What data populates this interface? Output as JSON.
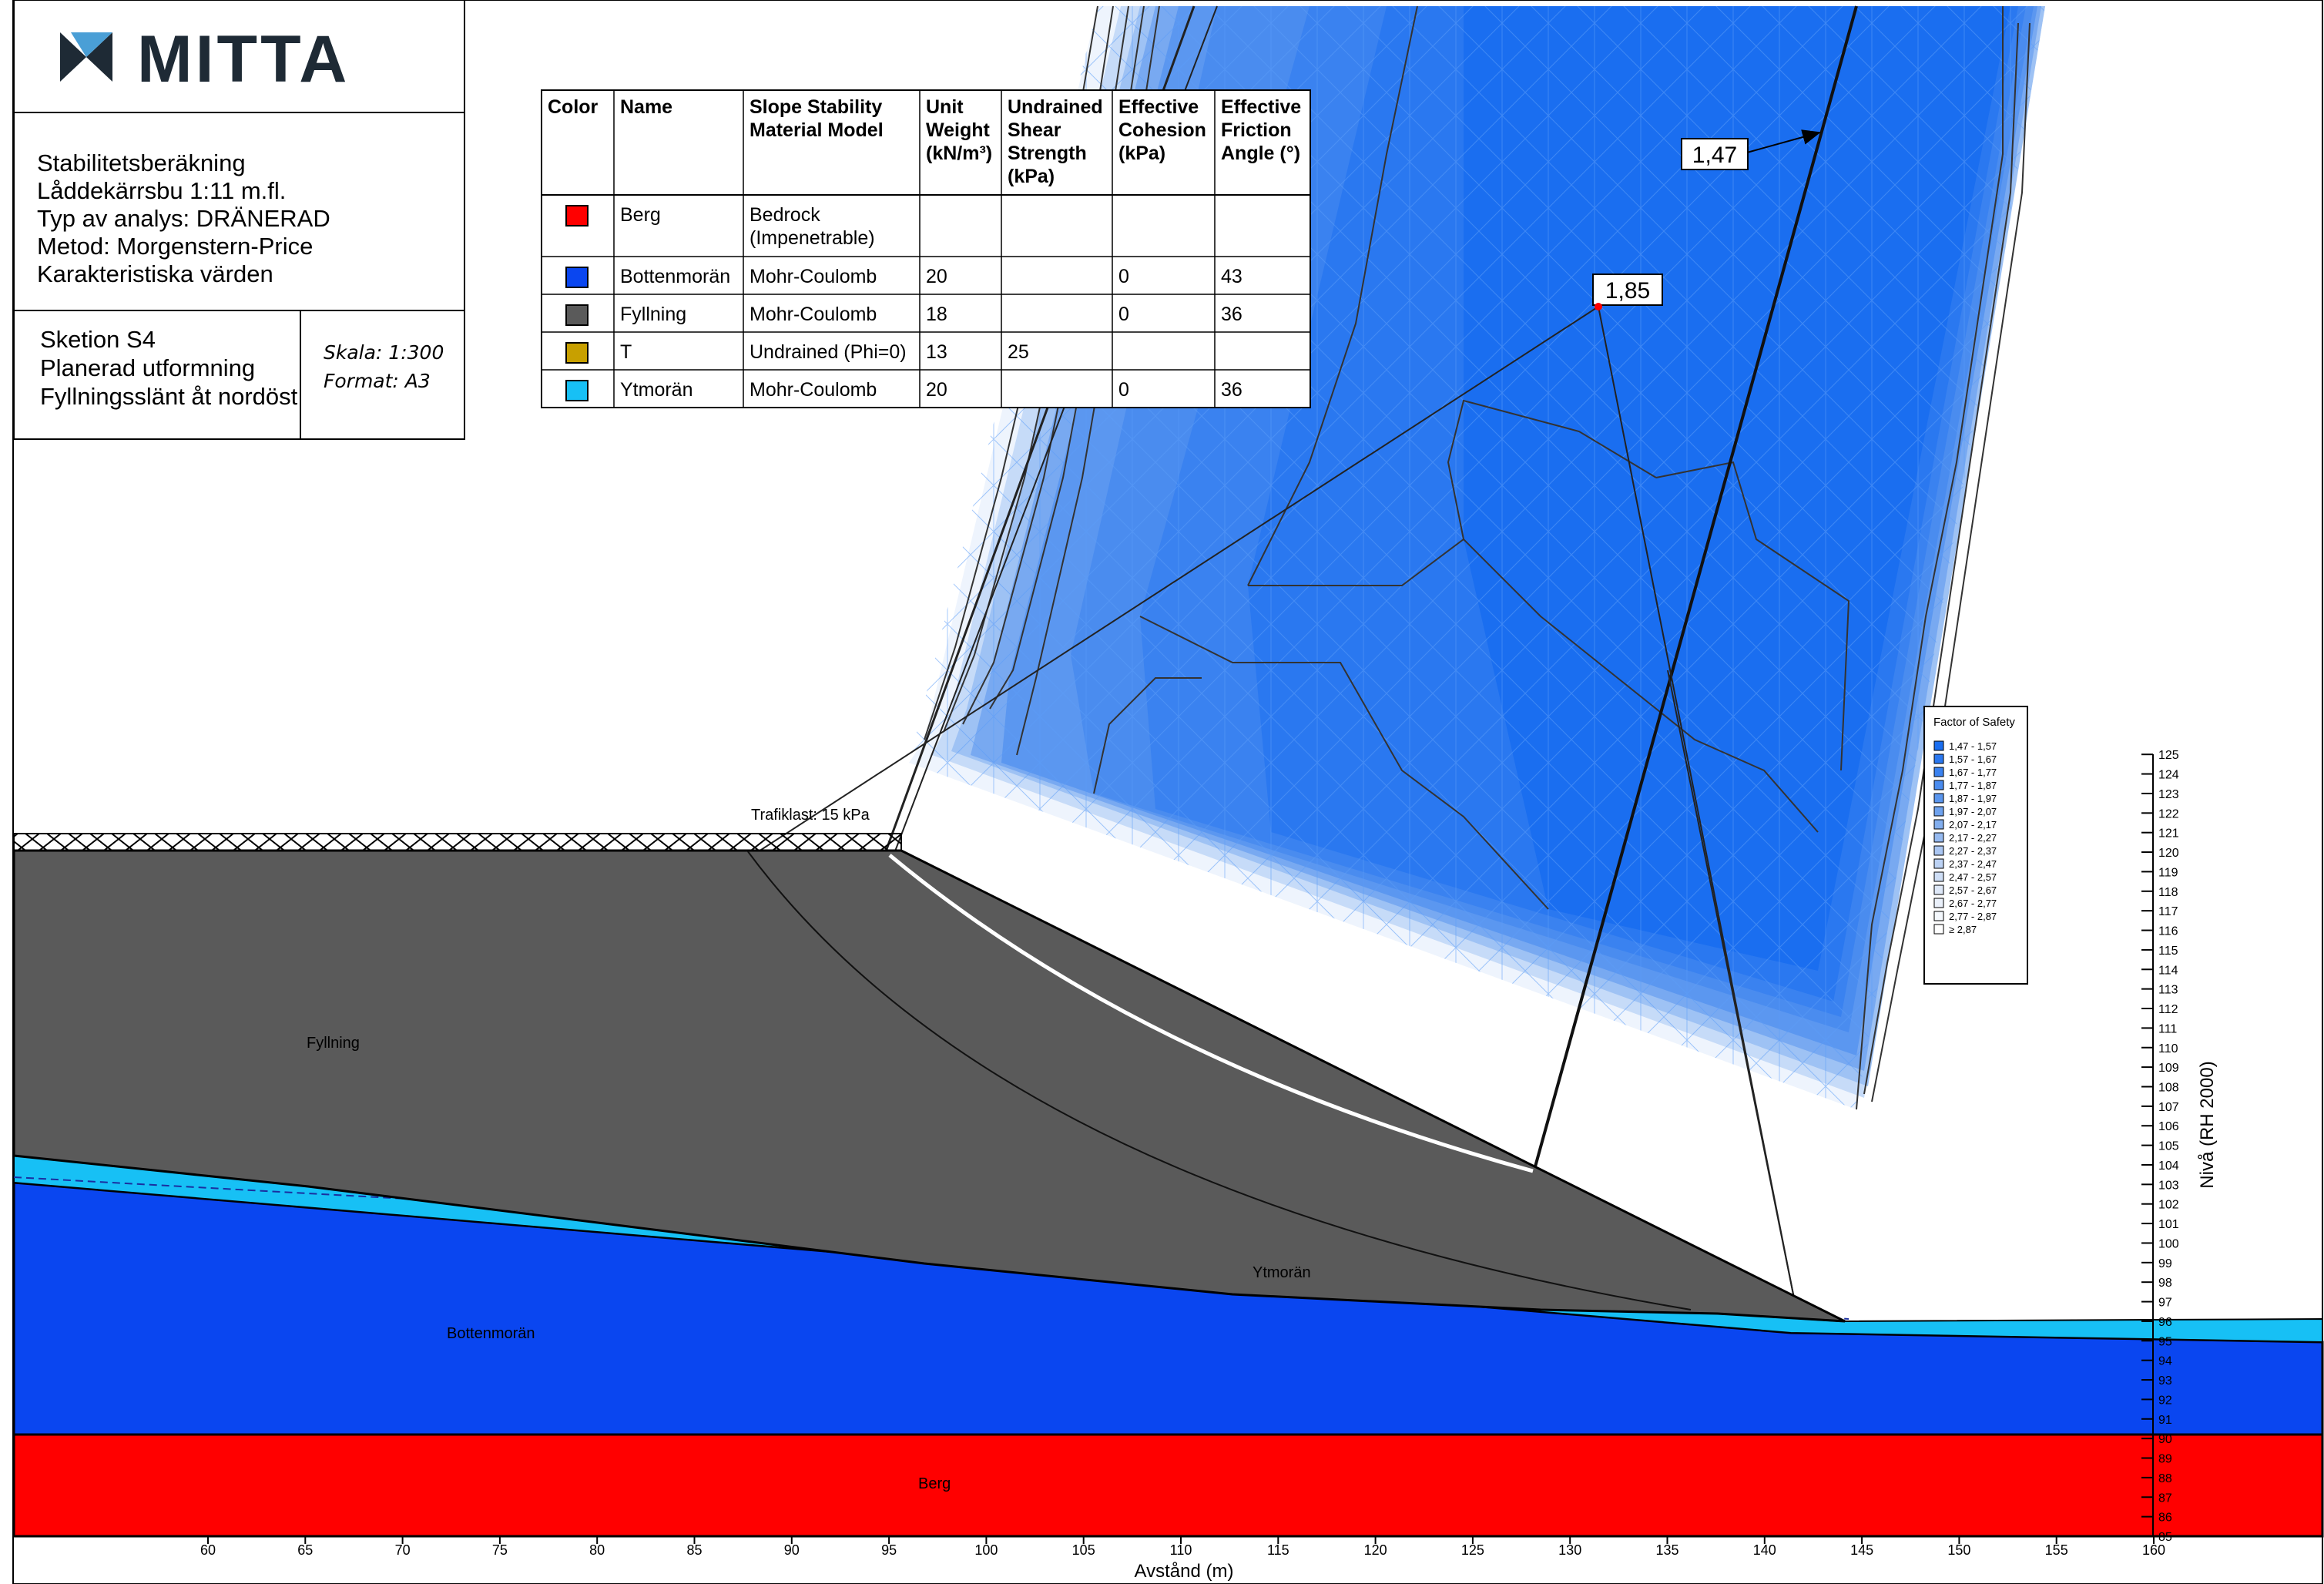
{
  "title_block": {
    "logo_text": "MITTA",
    "lines": [
      "Stabilitetsberäkning",
      "Låddekärrsbu 1:11 m.fl.",
      "Typ av analys: DRÄNERAD",
      "Metod: Morgenstern-Price",
      "Karakteristiska värden"
    ],
    "section_lines": [
      "Sketion S4",
      "Planerad utformning",
      "Fyllningsslänt åt nordöst"
    ],
    "scale": "Skala: 1:300",
    "format": "Format: A3"
  },
  "material_table": {
    "headers": [
      [
        "Color"
      ],
      [
        "Name"
      ],
      [
        "Slope Stability",
        "Material Model"
      ],
      [
        "Unit",
        "Weight",
        "(kN/m³)"
      ],
      [
        "Undrained",
        "Shear",
        "Strength",
        "(kPa)"
      ],
      [
        "Effective",
        "Cohesion",
        "(kPa)"
      ],
      [
        "Effective",
        "Friction",
        "Angle (°)"
      ]
    ],
    "rows": [
      {
        "color": "#ff0000",
        "name": "Berg",
        "model": [
          "Bedrock",
          "(Impenetrable)"
        ],
        "unit_weight": "",
        "undrained": "",
        "cohesion": "",
        "friction": ""
      },
      {
        "color": "#0a46f0",
        "name": "Bottenmorän",
        "model": [
          "Mohr-Coulomb"
        ],
        "unit_weight": "20",
        "undrained": "",
        "cohesion": "0",
        "friction": "43"
      },
      {
        "color": "#5a5a5a",
        "name": "Fyllning",
        "model": [
          "Mohr-Coulomb"
        ],
        "unit_weight": "18",
        "undrained": "",
        "cohesion": "0",
        "friction": "36"
      },
      {
        "color": "#c8a000",
        "name": "T",
        "model": [
          "Undrained (Phi=0)"
        ],
        "unit_weight": "13",
        "undrained": "25",
        "cohesion": "",
        "friction": ""
      },
      {
        "color": "#17c0f5",
        "name": "Ytmorän",
        "model": [
          "Mohr-Coulomb"
        ],
        "unit_weight": "20",
        "undrained": "",
        "cohesion": "0",
        "friction": "36"
      }
    ]
  },
  "fos_labels": {
    "min": "1,47",
    "selected": "1,85"
  },
  "fos_legend": {
    "title": "Factor of Safety",
    "ranges": [
      "1,47 - 1,57",
      "1,57 - 1,67",
      "1,67 - 1,77",
      "1,77 - 1,87",
      "1,87 - 1,97",
      "1,97 - 2,07",
      "2,07 - 2,17",
      "2,17 - 2,27",
      "2,27 - 2,37",
      "2,37 - 2,47",
      "2,47 - 2,57",
      "2,57 - 2,67",
      "2,67 - 2,77",
      "2,77 - 2,87",
      "≥ 2,87"
    ],
    "colors": [
      "#1a6ef0",
      "#2a78f0",
      "#3a82f0",
      "#4a8cef",
      "#5a96ee",
      "#6ea2ee",
      "#82aeee",
      "#96baf0",
      "#aac6f2",
      "#bcd2f4",
      "#cedef6",
      "#dee8f8",
      "#eaf0fa",
      "#f4f8fd",
      "#ffffff"
    ]
  },
  "load_label": "Trafiklast: 15 kPa",
  "layer_labels": {
    "fyllning": "Fyllning",
    "bottenmoran": "Bottenmorän",
    "ytmoran": "Ytmorän",
    "berg": "Berg"
  },
  "axes": {
    "xlabel": "Avstånd (m)",
    "ylabel": "Nivå (RH 2000)",
    "x_ticks": [
      60,
      65,
      70,
      75,
      80,
      85,
      90,
      95,
      100,
      105,
      110,
      115,
      120,
      125,
      130,
      135,
      140,
      145,
      150,
      155,
      160
    ],
    "y_ticks": [
      85,
      86,
      87,
      88,
      89,
      90,
      91,
      92,
      93,
      94,
      95,
      96,
      97,
      98,
      99,
      100,
      101,
      102,
      103,
      104,
      105,
      106,
      107,
      108,
      109,
      110,
      111,
      112,
      113,
      114,
      115,
      116,
      117,
      118,
      119,
      120,
      121,
      122,
      123,
      124,
      125
    ]
  }
}
